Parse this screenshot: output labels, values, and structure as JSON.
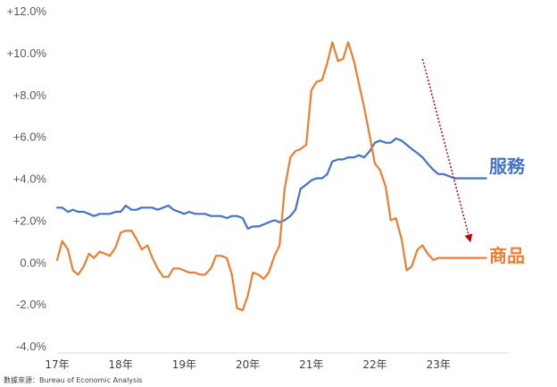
{
  "chart_data": {
    "type": "line",
    "source_note": "數據來源：Bureau of Economic Analysis",
    "y_ticks": [
      "+12.0%",
      "+10.0%",
      "+8.0%",
      "+6.0%",
      "+4.0%",
      "+2.0%",
      "0.0%",
      "-2.0%",
      "-4.0%"
    ],
    "y_tick_values": [
      12,
      10,
      8,
      6,
      4,
      2,
      0,
      -2,
      -4
    ],
    "ylim": [
      -4,
      12
    ],
    "x_ticks": [
      "17年",
      "18年",
      "19年",
      "20年",
      "21年",
      "22年",
      "23年"
    ],
    "x_range": [
      2017.0,
      2024.0
    ],
    "grid": false,
    "legend": "inline-right",
    "colors": {
      "services": "#4472C4",
      "goods": "#ED7D31",
      "arrow": "#C00000"
    },
    "series": [
      {
        "name": "服務",
        "x": [
          2017.0,
          2017.08,
          2017.17,
          2017.25,
          2017.33,
          2017.42,
          2017.5,
          2017.58,
          2017.67,
          2017.75,
          2017.83,
          2017.92,
          2018.0,
          2018.08,
          2018.17,
          2018.25,
          2018.33,
          2018.42,
          2018.5,
          2018.58,
          2018.67,
          2018.75,
          2018.83,
          2018.92,
          2019.0,
          2019.08,
          2019.17,
          2019.25,
          2019.33,
          2019.42,
          2019.5,
          2019.58,
          2019.67,
          2019.75,
          2019.83,
          2019.92,
          2020.0,
          2020.08,
          2020.17,
          2020.25,
          2020.33,
          2020.42,
          2020.5,
          2020.58,
          2020.67,
          2020.75,
          2020.83,
          2020.92,
          2021.0,
          2021.08,
          2021.17,
          2021.25,
          2021.33,
          2021.42,
          2021.5,
          2021.58,
          2021.67,
          2021.75,
          2021.83,
          2021.92,
          2022.0,
          2022.08,
          2022.17,
          2022.25,
          2022.33,
          2022.42,
          2022.5,
          2022.58,
          2022.67,
          2022.75,
          2022.83,
          2022.92,
          2023.0,
          2023.08,
          2023.17,
          2023.25,
          2023.33,
          2023.42,
          2023.5,
          2023.58,
          2023.67,
          2023.75
        ],
        "values": [
          2.6,
          2.6,
          2.4,
          2.5,
          2.4,
          2.4,
          2.3,
          2.2,
          2.3,
          2.3,
          2.3,
          2.4,
          2.4,
          2.7,
          2.5,
          2.5,
          2.6,
          2.6,
          2.6,
          2.5,
          2.6,
          2.7,
          2.5,
          2.4,
          2.3,
          2.4,
          2.3,
          2.3,
          2.3,
          2.2,
          2.2,
          2.2,
          2.1,
          2.2,
          2.2,
          2.1,
          1.6,
          1.7,
          1.7,
          1.8,
          1.9,
          2.0,
          1.9,
          2.0,
          2.2,
          2.5,
          3.5,
          3.7,
          3.9,
          4.0,
          4.0,
          4.2,
          4.8,
          4.9,
          4.9,
          5.0,
          5.0,
          5.1,
          5.0,
          5.3,
          5.7,
          5.8,
          5.7,
          5.7,
          5.9,
          5.8,
          5.6,
          5.4,
          5.2,
          5.0,
          4.7,
          4.4,
          4.2,
          4.2,
          4.1,
          4.0,
          4.0,
          4.0,
          4.0,
          4.0,
          4.0,
          4.0
        ]
      },
      {
        "name": "商品",
        "x": [
          2017.0,
          2017.08,
          2017.17,
          2017.25,
          2017.33,
          2017.42,
          2017.5,
          2017.58,
          2017.67,
          2017.75,
          2017.83,
          2017.92,
          2018.0,
          2018.08,
          2018.17,
          2018.25,
          2018.33,
          2018.42,
          2018.5,
          2018.58,
          2018.67,
          2018.75,
          2018.83,
          2018.92,
          2019.0,
          2019.08,
          2019.17,
          2019.25,
          2019.33,
          2019.42,
          2019.5,
          2019.58,
          2019.67,
          2019.75,
          2019.83,
          2019.92,
          2020.0,
          2020.08,
          2020.17,
          2020.25,
          2020.33,
          2020.42,
          2020.5,
          2020.58,
          2020.67,
          2020.75,
          2020.83,
          2020.92,
          2021.0,
          2021.08,
          2021.17,
          2021.25,
          2021.33,
          2021.42,
          2021.5,
          2021.58,
          2021.67,
          2021.75,
          2021.83,
          2021.92,
          2022.0,
          2022.08,
          2022.17,
          2022.25,
          2022.33,
          2022.42,
          2022.5,
          2022.58,
          2022.67,
          2022.75,
          2022.83,
          2022.92,
          2023.0,
          2023.08,
          2023.17,
          2023.25,
          2023.33,
          2023.42,
          2023.5,
          2023.58,
          2023.67,
          2023.75
        ],
        "values": [
          0.1,
          1.0,
          0.6,
          -0.4,
          -0.6,
          -0.2,
          0.4,
          0.2,
          0.5,
          0.4,
          0.3,
          0.7,
          1.4,
          1.5,
          1.5,
          1.1,
          0.6,
          0.8,
          0.2,
          -0.3,
          -0.7,
          -0.7,
          -0.3,
          -0.3,
          -0.4,
          -0.5,
          -0.5,
          -0.6,
          -0.6,
          -0.3,
          0.3,
          0.3,
          0.2,
          -0.6,
          -2.2,
          -2.3,
          -1.6,
          -0.5,
          -0.6,
          -0.8,
          -0.5,
          0.3,
          0.8,
          3.5,
          5.0,
          5.3,
          5.4,
          5.6,
          8.2,
          8.6,
          8.7,
          9.5,
          10.5,
          9.6,
          9.7,
          10.5,
          9.6,
          8.5,
          7.4,
          6.0,
          4.7,
          4.4,
          3.6,
          2.0,
          2.1,
          1.1,
          -0.4,
          -0.2,
          0.6,
          0.8,
          0.4,
          0.1,
          0.2,
          0.2,
          0.2,
          0.2,
          0.2,
          0.2,
          0.2,
          0.2,
          0.2,
          0.2
        ]
      }
    ],
    "trend_arrow": {
      "from": [
        2022.75,
        9.7
      ],
      "to": [
        2023.5,
        1.0
      ]
    }
  }
}
